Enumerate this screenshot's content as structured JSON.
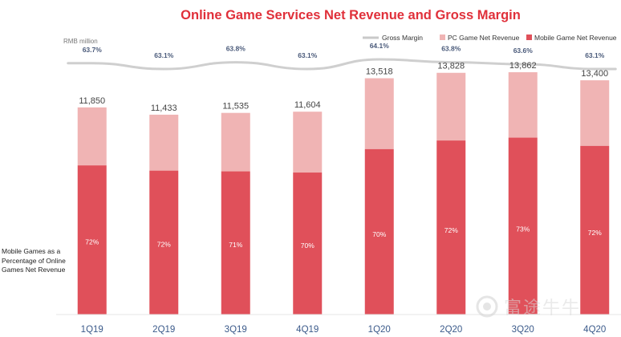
{
  "chart_data": {
    "type": "bar",
    "stacked": true,
    "title": "Online Game Services Net Revenue and Gross Margin",
    "unit_label": "RMB million",
    "categories": [
      "1Q19",
      "2Q19",
      "3Q19",
      "4Q19",
      "1Q20",
      "2Q20",
      "3Q20",
      "4Q20"
    ],
    "totals": [
      11850,
      11433,
      11535,
      11604,
      13518,
      13828,
      13862,
      13400
    ],
    "totals_text": [
      "11,850",
      "11,433",
      "11,535",
      "11,604",
      "13,518",
      "13,828",
      "13,862",
      "13,400"
    ],
    "mobile_share_text": [
      "72%",
      "72%",
      "71%",
      "70%",
      "70%",
      "72%",
      "73%",
      "72%"
    ],
    "series": [
      {
        "name": "Mobile Game Net Revenue",
        "values": [
          8532,
          8232,
          8190,
          8123,
          9463,
          9956,
          10119,
          9648
        ],
        "color": "#e0505a"
      },
      {
        "name": "PC Game Net Revenue",
        "values": [
          3318,
          3201,
          3345,
          3481,
          4055,
          3872,
          3743,
          3752
        ],
        "color": "#f0b4b4"
      }
    ],
    "gross_margin": {
      "name": "Gross Margin",
      "values_text": [
        "63.7%",
        "63.1%",
        "63.8%",
        "63.1%",
        "64.1%",
        "63.8%",
        "63.6%",
        "63.1%"
      ],
      "values": [
        63.7,
        63.1,
        63.8,
        63.1,
        64.1,
        63.8,
        63.6,
        63.1
      ],
      "color": "#c9c9c9"
    },
    "legend": [
      "Gross Margin",
      "PC Game Net Revenue",
      "Mobile Game Net Revenue"
    ],
    "legend_position": "top-right",
    "ylim": [
      0,
      14000
    ],
    "grid": false,
    "title_color": "#e0303a"
  },
  "side_note": "Mobile Games as a Percentage of Online Games Net Revenue",
  "watermark": {
    "text": "富途牛牛",
    "icon": "futu-logo-icon"
  }
}
